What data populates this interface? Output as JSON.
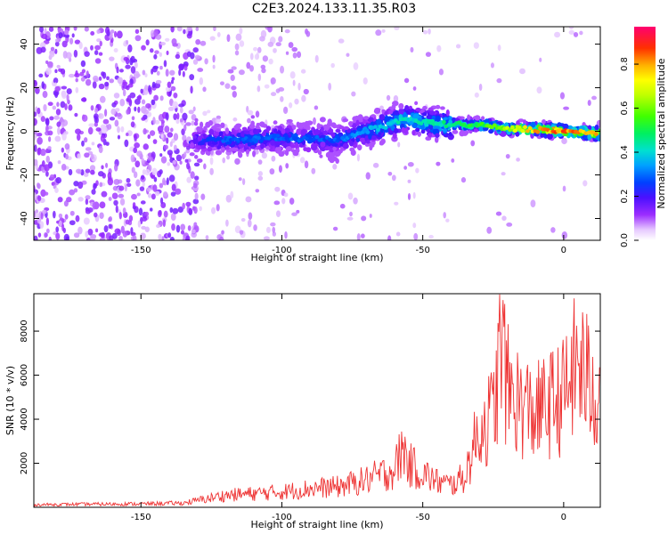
{
  "title": "C2E3.2024.133.11.35.R03",
  "chart_data": [
    {
      "type": "heatmap",
      "xlabel": "Height of straight line (km)",
      "ylabel": "Frequency (Hz)",
      "xlim": [
        -188,
        13
      ],
      "ylim": [
        -50,
        48
      ],
      "xticks": [
        -150,
        -100,
        -50,
        0
      ],
      "yticks": [
        -40,
        -20,
        0,
        20,
        40
      ],
      "colorbar": {
        "label": "Normalized spectral amplitude",
        "range": [
          0,
          0.97
        ],
        "ticks": [
          "0.0",
          "0.2",
          "0.4",
          "0.6",
          "0.8"
        ],
        "tick_values": [
          0.0,
          0.2,
          0.4,
          0.6,
          0.8
        ]
      },
      "ridge": {
        "x": [
          -130,
          -120,
          -100,
          -80,
          -60,
          -55,
          -50,
          -40,
          -30,
          -20,
          -10,
          0,
          13
        ],
        "y": [
          -4,
          -4,
          -3,
          -4,
          4,
          6,
          4,
          3,
          3,
          1,
          1,
          0,
          -1
        ],
        "amplitude": [
          0.25,
          0.3,
          0.3,
          0.3,
          0.45,
          0.45,
          0.45,
          0.5,
          0.55,
          0.7,
          0.85,
          0.9,
          0.8
        ]
      }
    },
    {
      "type": "line",
      "xlabel": "Height of straight line (km)",
      "ylabel": "SNR (10 * v/v)",
      "xlim": [
        -188,
        13
      ],
      "ylim": [
        0,
        9700
      ],
      "xticks": [
        -150,
        -100,
        -50,
        0
      ],
      "yticks": [
        2000,
        4000,
        6000,
        8000
      ],
      "line_color": "#ee3333",
      "series": [
        {
          "x": [
            -188,
            -170,
            -150,
            -135,
            -130,
            -125,
            -120,
            -110,
            -100,
            -90,
            -80,
            -70,
            -60,
            -57,
            -55,
            -50,
            -45,
            -40,
            -35,
            -33,
            -30,
            -25,
            -22,
            -20,
            -15,
            -10,
            -5,
            0,
            5,
            10,
            13
          ],
          "y": [
            150,
            180,
            200,
            250,
            400,
            550,
            700,
            800,
            900,
            1100,
            1200,
            1600,
            2200,
            3500,
            2500,
            2000,
            1500,
            1300,
            1800,
            3000,
            4500,
            5500,
            9700,
            7000,
            6000,
            5500,
            6000,
            6500,
            8500,
            7000,
            6500
          ]
        }
      ]
    }
  ]
}
